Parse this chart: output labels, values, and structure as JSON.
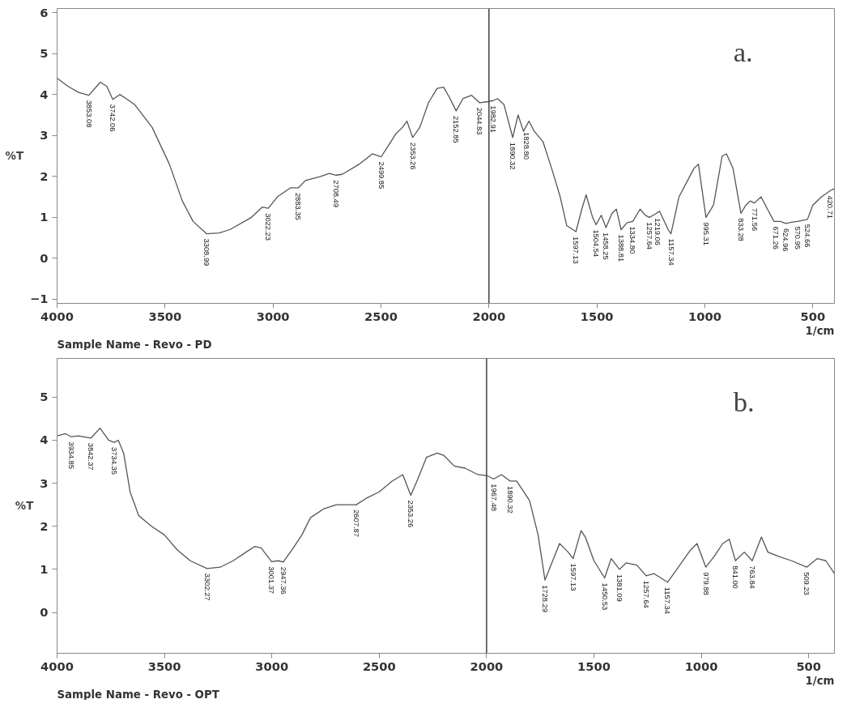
{
  "chart_data": [
    {
      "type": "line",
      "title": "a.",
      "ylabel": "%T",
      "xlabel": "1/cm",
      "xlim": [
        4000,
        400
      ],
      "xticks": [
        4000,
        3500,
        3000,
        2500,
        2000,
        1500,
        1000,
        500
      ],
      "ylim": [
        -1.1,
        6.1
      ],
      "yticks": [
        -1,
        0,
        1,
        2,
        3,
        4,
        5,
        6
      ],
      "grid": false,
      "ref_lines": [
        {
          "axis": "x",
          "value": 2000,
          "color": "#404040"
        }
      ],
      "series": [
        {
          "color": "#555555",
          "x": [
            4000,
            3950,
            3900,
            3853,
            3800,
            3770,
            3742,
            3710,
            3680,
            3640,
            3560,
            3480,
            3420,
            3370,
            3308,
            3250,
            3200,
            3100,
            3050,
            3022,
            2980,
            2920,
            2883,
            2850,
            2780,
            2740,
            2708,
            2680,
            2600,
            2540,
            2499,
            2460,
            2430,
            2400,
            2380,
            2353,
            2320,
            2280,
            2240,
            2210,
            2180,
            2152,
            2120,
            2080,
            2044,
            2010,
            1982,
            1960,
            1930,
            1890,
            1865,
            1840,
            1815,
            1790,
            1750,
            1710,
            1670,
            1640,
            1597,
            1570,
            1550,
            1520,
            1504,
            1480,
            1458,
            1430,
            1410,
            1388,
            1360,
            1334,
            1300,
            1275,
            1257,
            1230,
            1210,
            1170,
            1157,
            1120,
            1080,
            1050,
            1030,
            995,
            960,
            920,
            900,
            870,
            833,
            810,
            790,
            771,
            740,
            710,
            680,
            650,
            625,
            600,
            571,
            525,
            500,
            460,
            420,
            400
          ],
          "values": [
            4.4,
            4.2,
            4.05,
            3.98,
            4.3,
            4.2,
            3.88,
            4.0,
            3.9,
            3.75,
            3.2,
            2.3,
            1.4,
            0.9,
            0.6,
            0.62,
            0.7,
            1.0,
            1.25,
            1.22,
            1.5,
            1.72,
            1.72,
            1.9,
            2.0,
            2.07,
            2.03,
            2.05,
            2.3,
            2.55,
            2.48,
            2.8,
            3.05,
            3.2,
            3.35,
            2.95,
            3.2,
            3.8,
            4.15,
            4.18,
            3.9,
            3.6,
            3.9,
            3.98,
            3.8,
            3.82,
            3.85,
            3.9,
            3.75,
            2.95,
            3.5,
            3.1,
            3.35,
            3.1,
            2.85,
            2.2,
            1.5,
            0.8,
            0.65,
            1.2,
            1.55,
            1.0,
            0.82,
            1.05,
            0.75,
            1.1,
            1.2,
            0.7,
            0.87,
            0.9,
            1.2,
            1.05,
            1.0,
            1.08,
            1.15,
            0.7,
            0.6,
            1.5,
            1.9,
            2.2,
            2.3,
            1.0,
            1.3,
            2.5,
            2.55,
            2.2,
            1.1,
            1.3,
            1.4,
            1.35,
            1.5,
            1.2,
            0.9,
            0.9,
            0.85,
            0.88,
            0.9,
            0.95,
            1.3,
            1.5,
            1.65,
            1.7
          ]
        }
      ],
      "annotations": [
        "Sample Name  - Revo - PD",
        {
          "text": "3853.08",
          "x": 3853,
          "y": 3.98
        },
        {
          "text": "3742.06",
          "x": 3742,
          "y": 3.88
        },
        {
          "text": "3308.99",
          "x": 3308,
          "y": 0.6
        },
        {
          "text": "3022.23",
          "x": 3022,
          "y": 1.22
        },
        {
          "text": "2883.35",
          "x": 2883,
          "y": 1.72
        },
        {
          "text": "2708.49",
          "x": 2708,
          "y": 2.03
        },
        {
          "text": "2499.85",
          "x": 2499,
          "y": 2.48
        },
        {
          "text": "2353.26",
          "x": 2353,
          "y": 2.95
        },
        {
          "text": "2152.85",
          "x": 2152,
          "y": 3.6
        },
        {
          "text": "2044.83",
          "x": 2044,
          "y": 3.8
        },
        {
          "text": "1982.91",
          "x": 1982,
          "y": 3.85
        },
        {
          "text": "1890.32",
          "x": 1890,
          "y": 2.95
        },
        {
          "text": "1828.80",
          "x": 1828,
          "y": 3.2
        },
        {
          "text": "1597.13",
          "x": 1597,
          "y": 0.65
        },
        {
          "text": "1504.54",
          "x": 1504,
          "y": 0.82
        },
        {
          "text": "1458.25",
          "x": 1458,
          "y": 0.75
        },
        {
          "text": "1388.81",
          "x": 1388,
          "y": 0.7
        },
        {
          "text": "1334.80",
          "x": 1334,
          "y": 0.9
        },
        {
          "text": "1257.64",
          "x": 1257,
          "y": 1.0
        },
        {
          "text": "1219.06",
          "x": 1219,
          "y": 1.1
        },
        {
          "text": "1157.34",
          "x": 1157,
          "y": 0.6
        },
        {
          "text": "995.31",
          "x": 995,
          "y": 1.0
        },
        {
          "text": "833.28",
          "x": 833,
          "y": 1.1
        },
        {
          "text": "771.56",
          "x": 771,
          "y": 1.35
        },
        {
          "text": "671.26",
          "x": 671,
          "y": 0.9
        },
        {
          "text": "624.96",
          "x": 625,
          "y": 0.85
        },
        {
          "text": "570.95",
          "x": 571,
          "y": 0.9
        },
        {
          "text": "524.66",
          "x": 525,
          "y": 0.95
        },
        {
          "text": "420.71",
          "x": 420,
          "y": 1.65
        }
      ]
    },
    {
      "type": "line",
      "title": "b.",
      "ylabel": "%T",
      "xlabel": "1/cm",
      "xlim": [
        4000,
        380
      ],
      "xticks": [
        4000,
        3500,
        3000,
        2500,
        2000,
        1500,
        1000,
        500
      ],
      "ylim": [
        -0.95,
        5.9
      ],
      "yticks": [
        0,
        1,
        2,
        3,
        4,
        5
      ],
      "grid": false,
      "ref_lines": [
        {
          "axis": "x",
          "value": 2000,
          "color": "#404040"
        }
      ],
      "series": [
        {
          "color": "#555555",
          "x": [
            4000,
            3960,
            3934,
            3900,
            3842,
            3800,
            3760,
            3734,
            3715,
            3690,
            3660,
            3620,
            3560,
            3500,
            3440,
            3380,
            3302,
            3240,
            3180,
            3120,
            3080,
            3050,
            3001,
            2970,
            2947,
            2900,
            2860,
            2820,
            2760,
            2700,
            2607,
            2560,
            2500,
            2440,
            2390,
            2353,
            2320,
            2280,
            2230,
            2200,
            2150,
            2100,
            2040,
            2000,
            1967,
            1930,
            1890,
            1860,
            1800,
            1760,
            1728,
            1700,
            1660,
            1620,
            1597,
            1560,
            1540,
            1500,
            1450,
            1420,
            1381,
            1350,
            1300,
            1257,
            1220,
            1157,
            1100,
            1050,
            1020,
            979,
            940,
            900,
            870,
            841,
            800,
            763,
            720,
            690,
            640,
            580,
            509,
            460,
            420,
            380
          ],
          "values": [
            4.1,
            4.15,
            4.08,
            4.1,
            4.05,
            4.28,
            4.0,
            3.95,
            4.0,
            3.7,
            2.8,
            2.25,
            2.0,
            1.8,
            1.45,
            1.2,
            1.02,
            1.05,
            1.2,
            1.4,
            1.53,
            1.5,
            1.18,
            1.2,
            1.17,
            1.5,
            1.8,
            2.2,
            2.4,
            2.5,
            2.5,
            2.65,
            2.8,
            3.05,
            3.2,
            2.72,
            3.1,
            3.6,
            3.7,
            3.65,
            3.4,
            3.35,
            3.2,
            3.18,
            3.1,
            3.2,
            3.05,
            3.05,
            2.6,
            1.8,
            0.75,
            1.1,
            1.6,
            1.4,
            1.25,
            1.9,
            1.75,
            1.2,
            0.8,
            1.25,
            1.0,
            1.15,
            1.1,
            0.85,
            0.9,
            0.7,
            1.1,
            1.45,
            1.6,
            1.05,
            1.3,
            1.6,
            1.7,
            1.2,
            1.4,
            1.2,
            1.75,
            1.4,
            1.3,
            1.2,
            1.05,
            1.25,
            1.2,
            0.9
          ]
        }
      ],
      "annotations": [
        "Sample Name  - Revo - OPT",
        {
          "text": "3934.85",
          "x": 3934,
          "y": 4.08
        },
        {
          "text": "3842.37",
          "x": 3842,
          "y": 4.05
        },
        {
          "text": "3734.35",
          "x": 3734,
          "y": 3.95
        },
        {
          "text": "3302.27",
          "x": 3302,
          "y": 1.02
        },
        {
          "text": "3001.37",
          "x": 3001,
          "y": 1.18
        },
        {
          "text": "2947.36",
          "x": 2947,
          "y": 1.17
        },
        {
          "text": "2607.87",
          "x": 2607,
          "y": 2.5
        },
        {
          "text": "2353.26",
          "x": 2353,
          "y": 2.72
        },
        {
          "text": "1967.48",
          "x": 1967,
          "y": 3.1
        },
        {
          "text": "1890.32",
          "x": 1890,
          "y": 3.05
        },
        {
          "text": "1728.29",
          "x": 1728,
          "y": 0.75
        },
        {
          "text": "1597.13",
          "x": 1597,
          "y": 1.25
        },
        {
          "text": "1450.53",
          "x": 1450,
          "y": 0.8
        },
        {
          "text": "1381.09",
          "x": 1381,
          "y": 1.0
        },
        {
          "text": "1257.64",
          "x": 1257,
          "y": 0.85
        },
        {
          "text": "1157.34",
          "x": 1157,
          "y": 0.7
        },
        {
          "text": "979.88",
          "x": 979,
          "y": 1.05
        },
        {
          "text": "841.00",
          "x": 841,
          "y": 1.2
        },
        {
          "text": "763.84",
          "x": 763,
          "y": 1.2
        },
        {
          "text": "509.23",
          "x": 509,
          "y": 1.05
        }
      ]
    }
  ]
}
